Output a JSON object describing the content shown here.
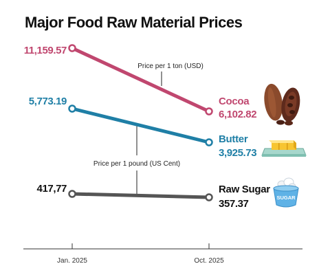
{
  "chart_data": {
    "type": "line",
    "title": "Major Food Raw Material Prices",
    "categories": [
      "Jan. 2025",
      "Oct. 2025"
    ],
    "series": [
      {
        "name": "Cocoa",
        "values": [
          11159.57,
          6102.82
        ],
        "labels": [
          "11,159.57",
          "6,102.82"
        ],
        "color": "#c0476f",
        "icon": "cocoa-pod-icon",
        "unit_note": "Price per 1 ton (USD)"
      },
      {
        "name": "Butter",
        "values": [
          5773.19,
          3925.73
        ],
        "labels": [
          "5,773.19",
          "3,925.73"
        ],
        "color": "#1f7fa6",
        "icon": "butter-icon",
        "unit_note": "Price per 1 pound (US Cent)"
      },
      {
        "name": "Raw Sugar",
        "values": [
          417.77,
          357.37
        ],
        "labels": [
          "417,77",
          "357.37"
        ],
        "color": "#555555",
        "icon": "sugar-bowl-icon",
        "icon_text": "SUGAR"
      }
    ]
  }
}
